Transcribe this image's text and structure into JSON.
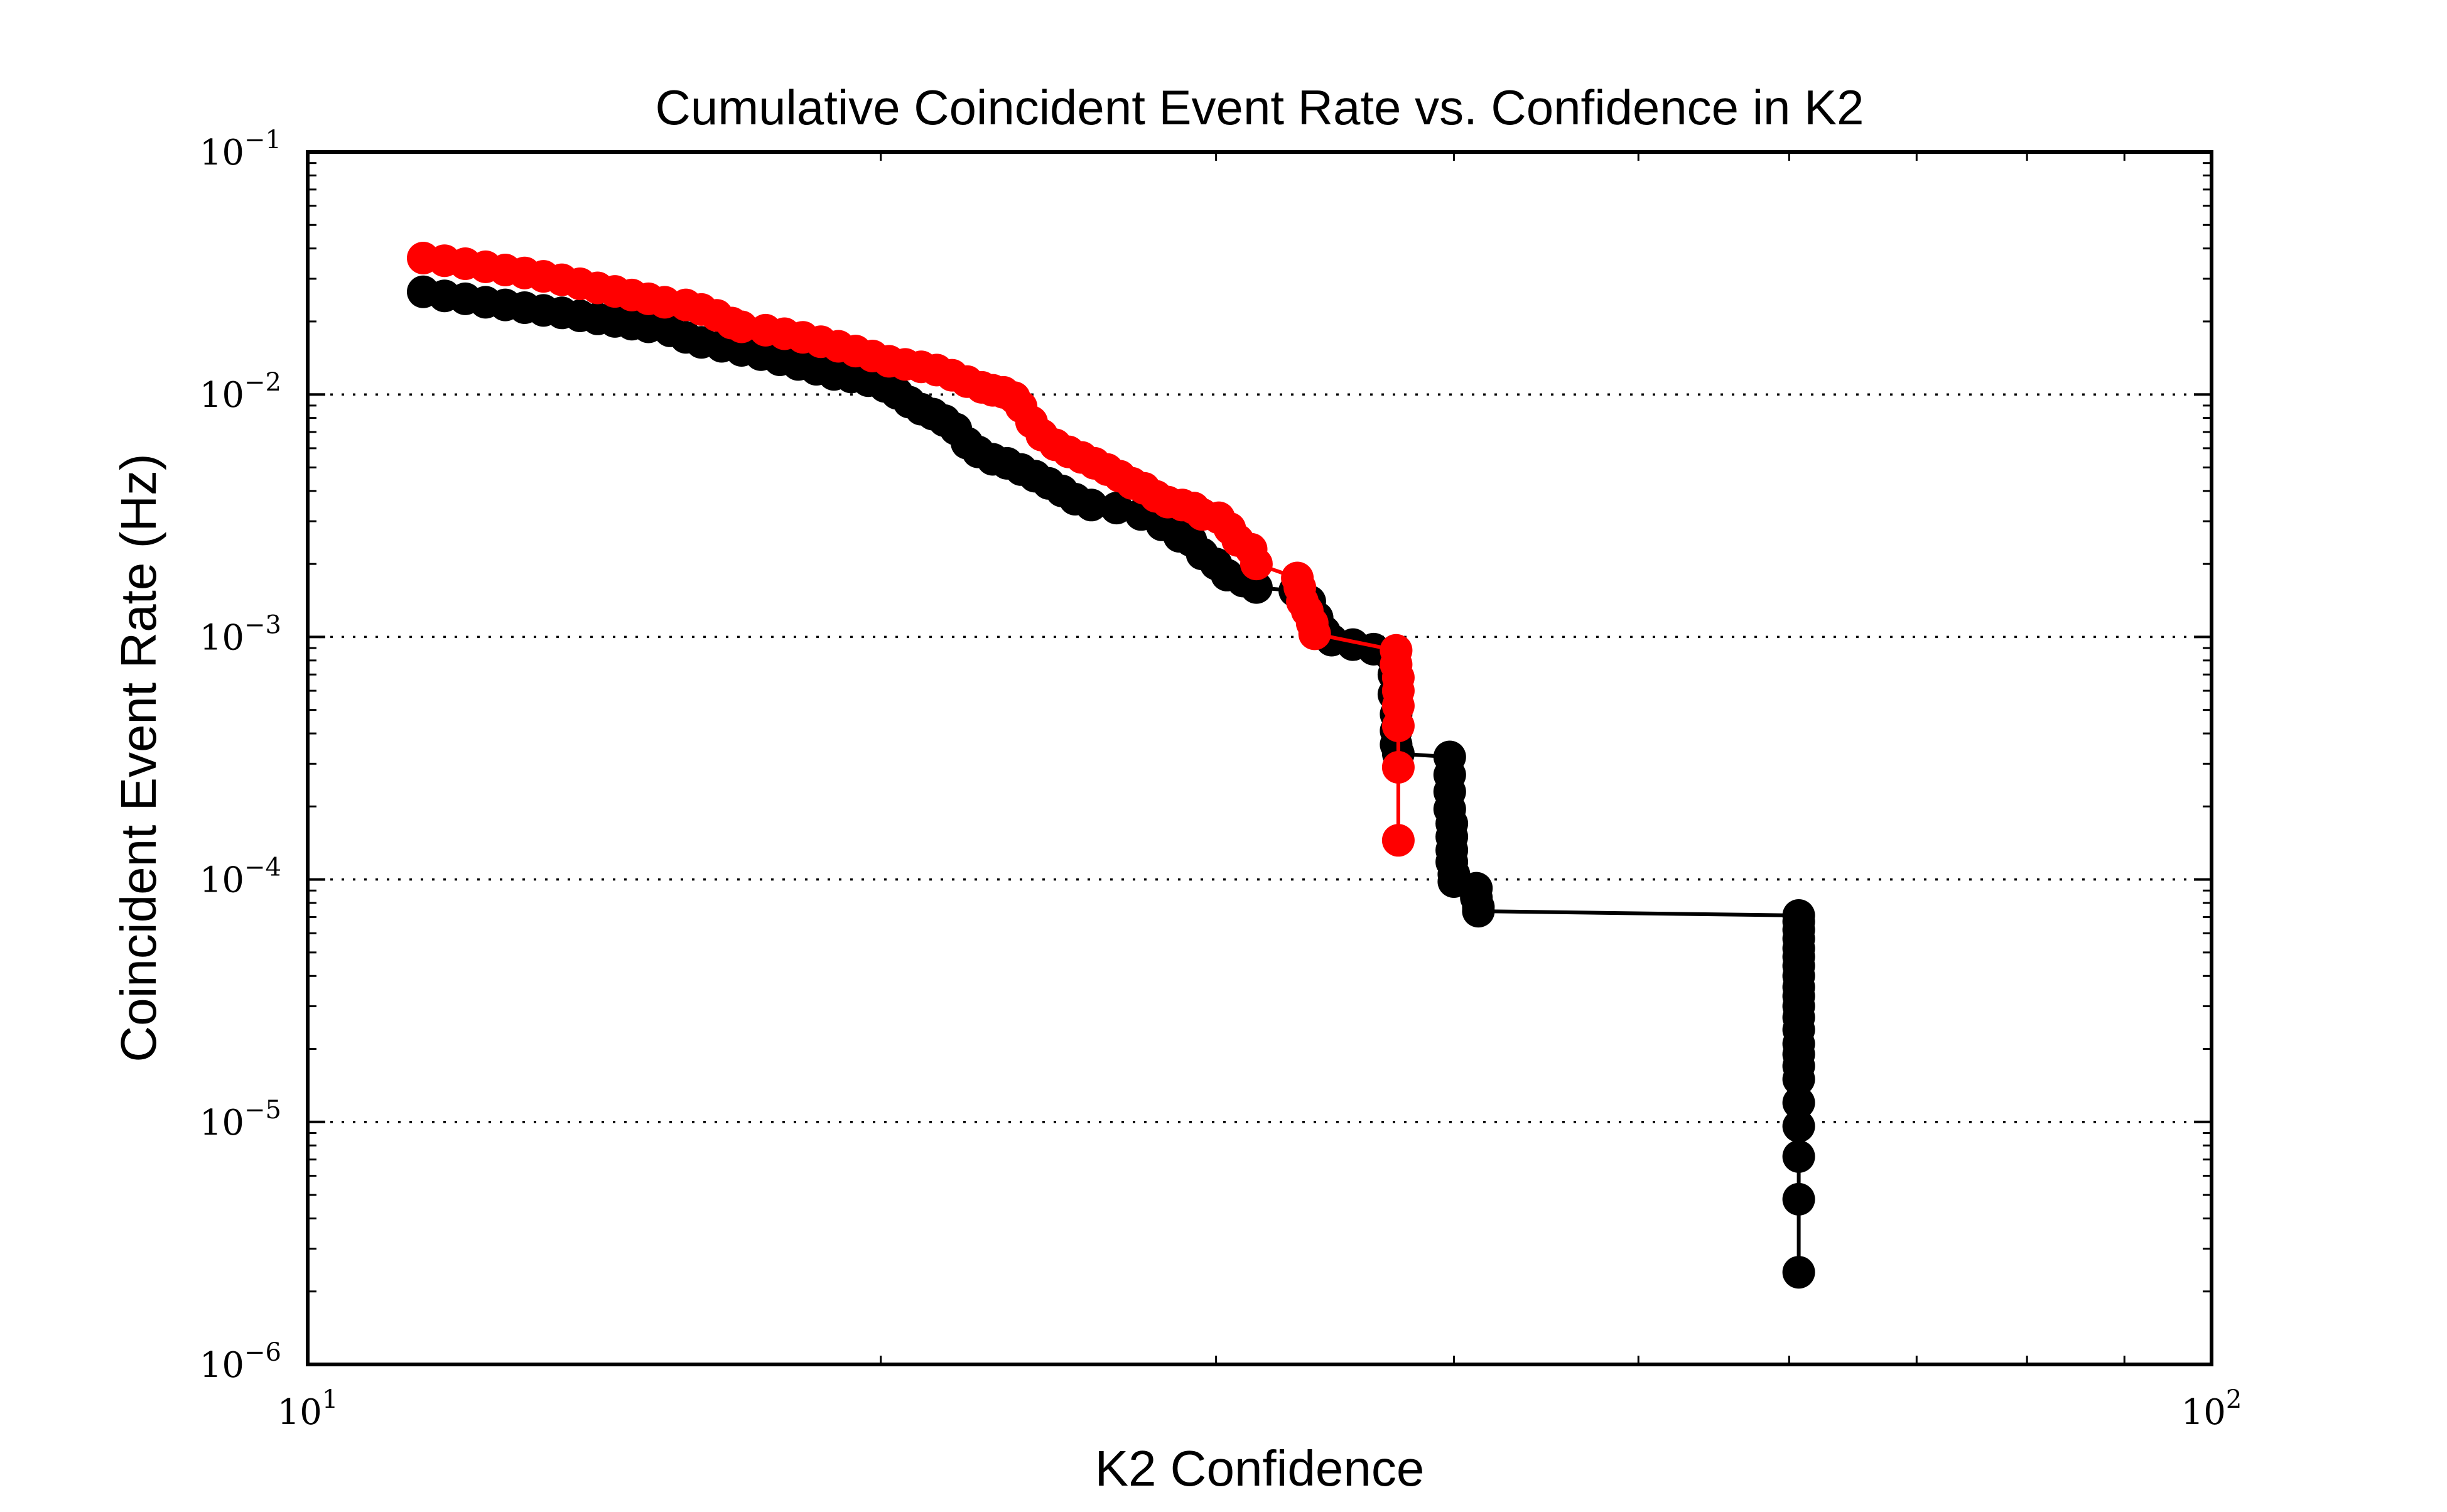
{
  "chart_data": {
    "type": "line",
    "title": "Cumulative Coincident Event Rate vs. Confidence in K2",
    "xlabel": "K2 Confidence",
    "ylabel": "Coincident Event Rate (Hz)",
    "xscale": "log",
    "yscale": "log",
    "xlim": [
      10,
      100
    ],
    "ylim": [
      1e-06,
      0.1
    ],
    "x_ticks": [
      {
        "base": "10",
        "exp": "1"
      },
      {
        "base": "10",
        "exp": "2"
      }
    ],
    "y_ticks": [
      {
        "base": "10",
        "exp": "−6"
      },
      {
        "base": "10",
        "exp": "−5"
      },
      {
        "base": "10",
        "exp": "−4"
      },
      {
        "base": "10",
        "exp": "−3"
      },
      {
        "base": "10",
        "exp": "−2"
      },
      {
        "base": "10",
        "exp": "−1"
      }
    ],
    "grid": "y-major dotted",
    "legend": "none",
    "series": [
      {
        "color": "#000000",
        "points": [
          [
            11.5,
            0.0265
          ],
          [
            11.8,
            0.0255
          ],
          [
            12.1,
            0.0248
          ],
          [
            12.4,
            0.024
          ],
          [
            12.7,
            0.0234
          ],
          [
            13.0,
            0.0228
          ],
          [
            13.3,
            0.0222
          ],
          [
            13.6,
            0.0217
          ],
          [
            13.9,
            0.0211
          ],
          [
            14.2,
            0.0205
          ],
          [
            14.5,
            0.02
          ],
          [
            14.8,
            0.0195
          ],
          [
            15.1,
            0.019
          ],
          [
            15.5,
            0.0183
          ],
          [
            15.8,
            0.0172
          ],
          [
            16.1,
            0.0164
          ],
          [
            16.5,
            0.0158
          ],
          [
            16.9,
            0.0152
          ],
          [
            17.3,
            0.0146
          ],
          [
            17.7,
            0.0139
          ],
          [
            18.1,
            0.0133
          ],
          [
            18.5,
            0.0127
          ],
          [
            18.9,
            0.0121
          ],
          [
            19.3,
            0.0118
          ],
          [
            19.7,
            0.0114
          ],
          [
            20.1,
            0.0108
          ],
          [
            20.4,
            0.0101
          ],
          [
            20.7,
            0.0093
          ],
          [
            21.0,
            0.0087
          ],
          [
            21.3,
            0.0083
          ],
          [
            21.6,
            0.0078
          ],
          [
            21.9,
            0.0072
          ],
          [
            22.2,
            0.0063
          ],
          [
            22.5,
            0.0058
          ],
          [
            22.9,
            0.0054
          ],
          [
            23.3,
            0.0052
          ],
          [
            23.7,
            0.0049
          ],
          [
            24.1,
            0.0046
          ],
          [
            24.5,
            0.0043
          ],
          [
            24.9,
            0.004
          ],
          [
            25.3,
            0.0037
          ],
          [
            25.8,
            0.0035
          ],
          [
            26.6,
            0.0034
          ],
          [
            27.4,
            0.0032
          ],
          [
            28.1,
            0.0029
          ],
          [
            28.7,
            0.0026
          ],
          [
            29.1,
            0.0025
          ],
          [
            29.5,
            0.0022
          ],
          [
            30.0,
            0.002
          ],
          [
            30.4,
            0.0018
          ],
          [
            31.0,
            0.0017
          ],
          [
            31.5,
            0.0016
          ],
          [
            33.0,
            0.00155
          ],
          [
            33.6,
            0.0014
          ],
          [
            33.9,
            0.0012
          ],
          [
            34.2,
            0.00105
          ],
          [
            34.5,
            0.00097
          ],
          [
            35.4,
            0.00093
          ],
          [
            36.3,
            0.00089
          ],
          [
            37.0,
            0.00085
          ],
          [
            37.2,
            0.0007
          ],
          [
            37.2,
            0.00058
          ],
          [
            37.3,
            0.00048
          ],
          [
            37.3,
            0.00041
          ],
          [
            37.3,
            0.00036
          ],
          [
            37.4,
            0.00033
          ],
          [
            39.8,
            0.00032
          ],
          [
            39.8,
            0.00027
          ],
          [
            39.8,
            0.00023
          ],
          [
            39.8,
            0.000195
          ],
          [
            39.9,
            0.00017
          ],
          [
            39.9,
            0.00015
          ],
          [
            39.9,
            0.000132
          ],
          [
            39.9,
            0.000118
          ],
          [
            40.0,
            0.000105
          ],
          [
            40.0,
            9.8e-05
          ],
          [
            41.1,
            9.2e-05
          ],
          [
            41.1,
            8.4e-05
          ],
          [
            41.2,
            7.7e-05
          ],
          [
            41.2,
            7.4e-05
          ],
          [
            60.7,
            7.1e-05
          ],
          [
            60.7,
            6.7e-05
          ],
          [
            60.7,
            6.2e-05
          ],
          [
            60.7,
            5.7e-05
          ],
          [
            60.7,
            5.2e-05
          ],
          [
            60.7,
            4.8e-05
          ],
          [
            60.7,
            4.4e-05
          ],
          [
            60.7,
            4e-05
          ],
          [
            60.7,
            3.6e-05
          ],
          [
            60.7,
            3.3e-05
          ],
          [
            60.7,
            3e-05
          ],
          [
            60.7,
            2.7e-05
          ],
          [
            60.7,
            2.4e-05
          ],
          [
            60.7,
            2.1e-05
          ],
          [
            60.7,
            1.9e-05
          ],
          [
            60.7,
            1.7e-05
          ],
          [
            60.7,
            1.5e-05
          ],
          [
            60.7,
            1.2e-05
          ],
          [
            60.7,
            9.6e-06
          ],
          [
            60.7,
            7.2e-06
          ],
          [
            60.7,
            4.8e-06
          ],
          [
            60.7,
            2.4e-06
          ]
        ]
      },
      {
        "color": "#ff0000",
        "points": [
          [
            11.5,
            0.0365
          ],
          [
            11.8,
            0.0356
          ],
          [
            12.1,
            0.0346
          ],
          [
            12.4,
            0.0336
          ],
          [
            12.7,
            0.0326
          ],
          [
            13.0,
            0.0317
          ],
          [
            13.3,
            0.0307
          ],
          [
            13.6,
            0.0297
          ],
          [
            13.9,
            0.0286
          ],
          [
            14.2,
            0.0275
          ],
          [
            14.5,
            0.0266
          ],
          [
            14.8,
            0.0257
          ],
          [
            15.1,
            0.0248
          ],
          [
            15.4,
            0.024
          ],
          [
            15.8,
            0.0234
          ],
          [
            16.1,
            0.0224
          ],
          [
            16.4,
            0.0212
          ],
          [
            16.7,
            0.0197
          ],
          [
            16.9,
            0.019
          ],
          [
            17.4,
            0.0184
          ],
          [
            17.8,
            0.0178
          ],
          [
            18.2,
            0.0172
          ],
          [
            18.6,
            0.0165
          ],
          [
            19.0,
            0.0158
          ],
          [
            19.4,
            0.0151
          ],
          [
            19.8,
            0.0144
          ],
          [
            20.2,
            0.0137
          ],
          [
            20.6,
            0.0133
          ],
          [
            21.0,
            0.013
          ],
          [
            21.4,
            0.0126
          ],
          [
            21.8,
            0.012
          ],
          [
            22.2,
            0.0113
          ],
          [
            22.6,
            0.0107
          ],
          [
            22.9,
            0.0104
          ],
          [
            23.2,
            0.0102
          ],
          [
            23.5,
            0.0097
          ],
          [
            23.7,
            0.0089
          ],
          [
            24.0,
            0.0077
          ],
          [
            24.3,
            0.0068
          ],
          [
            24.7,
            0.0062
          ],
          [
            25.1,
            0.0058
          ],
          [
            25.5,
            0.0055
          ],
          [
            25.9,
            0.0052
          ],
          [
            26.3,
            0.0049
          ],
          [
            26.7,
            0.0046
          ],
          [
            27.1,
            0.0043
          ],
          [
            27.5,
            0.0041
          ],
          [
            27.9,
            0.0038
          ],
          [
            28.3,
            0.0036
          ],
          [
            28.8,
            0.0035
          ],
          [
            29.2,
            0.0034
          ],
          [
            29.5,
            0.0032
          ],
          [
            30.1,
            0.0031
          ],
          [
            30.5,
            0.0028
          ],
          [
            30.8,
            0.0025
          ],
          [
            31.3,
            0.0023
          ],
          [
            31.5,
            0.002
          ],
          [
            33.1,
            0.00175
          ],
          [
            33.2,
            0.0016
          ],
          [
            33.3,
            0.0014
          ],
          [
            33.5,
            0.00128
          ],
          [
            33.7,
            0.00114
          ],
          [
            33.8,
            0.00103
          ],
          [
            37.3,
            0.00088
          ],
          [
            37.3,
            0.00077
          ],
          [
            37.4,
            0.00068
          ],
          [
            37.4,
            0.0006
          ],
          [
            37.4,
            0.00052
          ],
          [
            37.4,
            0.00043
          ],
          [
            37.4,
            0.00029
          ],
          [
            37.4,
            0.000145
          ]
        ]
      }
    ]
  }
}
